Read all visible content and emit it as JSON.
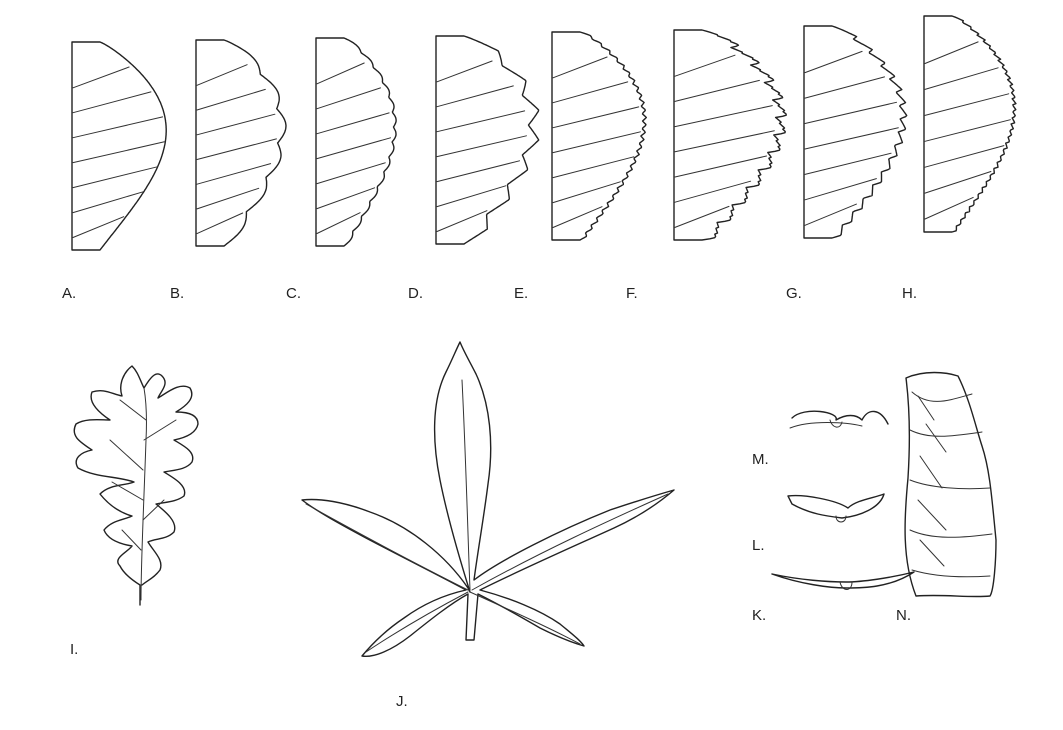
{
  "figure": {
    "margin_panels": [
      {
        "id": "A",
        "label": "A.",
        "margin": "entire"
      },
      {
        "id": "B",
        "label": "B.",
        "margin": "crenate"
      },
      {
        "id": "C",
        "label": "C.",
        "margin": "crenulate"
      },
      {
        "id": "D",
        "label": "D.",
        "margin": "dentate"
      },
      {
        "id": "E",
        "label": "E.",
        "margin": "denticulate"
      },
      {
        "id": "F",
        "label": "F.",
        "margin": "doubly-serrate"
      },
      {
        "id": "G",
        "label": "G.",
        "margin": "serrate"
      },
      {
        "id": "H",
        "label": "H.",
        "margin": "serrulate"
      }
    ],
    "leaf_labels": {
      "I": "I.",
      "J": "J.",
      "K": "K.",
      "L": "L.",
      "M": "M.",
      "N": "N."
    }
  }
}
